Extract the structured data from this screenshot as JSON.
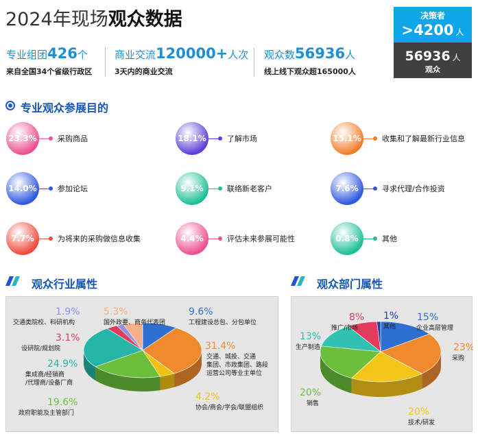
{
  "header": {
    "title_regular": "2024年现场",
    "title_bold": "观众数据"
  },
  "decision_box": {
    "label": "决策者",
    "value": ">4200",
    "unit": "人"
  },
  "audience_box": {
    "value": "56936",
    "unit": "人",
    "label": "观众"
  },
  "stats": [
    {
      "prefix": "专业组团",
      "number": "426",
      "suffix": "个",
      "desc": "来自全国34个省级行政区"
    },
    {
      "prefix": "商业交流",
      "number": "120000+",
      "suffix": "人次",
      "desc": "3天内的商业交流"
    },
    {
      "prefix": "观众数",
      "number": "56936",
      "suffix": "人",
      "desc": "线上线下观众超165000人"
    }
  ],
  "purpose": {
    "title": "专业观众参展目的",
    "items": [
      {
        "pct": "23.3%",
        "label": "采购商品",
        "color": "#ec4f8f"
      },
      {
        "pct": "18.1%",
        "label": "了解市场",
        "color": "#5b3fd6"
      },
      {
        "pct": "15.1%",
        "label": "收集和了解最新行业信息",
        "color": "#f27c2a"
      },
      {
        "pct": "14.0%",
        "label": "参加论坛",
        "color": "#2f57e0"
      },
      {
        "pct": "9.1%",
        "label": "联络新老客户",
        "color": "#1dbf95"
      },
      {
        "pct": "7.6%",
        "label": "寻求代理/合作投资",
        "color": "#2f57e0"
      },
      {
        "pct": "7.7%",
        "label": "为将来的采购做信息收集",
        "color": "#ef4a3a"
      },
      {
        "pct": "4.4%",
        "label": "评估未来参展可能性",
        "color": "#ec4f8f"
      },
      {
        "pct": "0.8%",
        "label": "其他",
        "color": "#1dbf95"
      }
    ]
  },
  "industry": {
    "title": "观众行业属性"
  },
  "department": {
    "title": "观众部门属性"
  },
  "chart_data": [
    {
      "type": "pie",
      "title": "观众行业属性",
      "slices": [
        {
          "label": "工程建设总包、分包单位",
          "value": 9.6,
          "display": "9.6%",
          "color": "#2f6fd1"
        },
        {
          "label": "交通、城投、交通集团、市政集团、路段运营公司等业主单位",
          "value": 31.4,
          "display": "31.4%",
          "color": "#f08a2e"
        },
        {
          "label": "协会/商会/学会/联盟组织",
          "value": 4.2,
          "display": "4.2%",
          "color": "#f2c211"
        },
        {
          "label": "政府职能及主管部门",
          "value": 19.6,
          "display": "19.6%",
          "color": "#6bbf3b"
        },
        {
          "label": "集成商/经销商/代理商/设备厂商",
          "value": 24.9,
          "display": "24.9%",
          "color": "#26b5a6"
        },
        {
          "label": "设研院/规划院",
          "value": 3.1,
          "display": "3.1%",
          "color": "#e23b5c"
        },
        {
          "label": "交通类院校、科研机构",
          "value": 1.9,
          "display": "1.9%",
          "color": "#8f8fe8"
        },
        {
          "label": "国外政要、商务代表团",
          "value": 5.3,
          "display": "5.3%",
          "color": "#f4b08a"
        }
      ]
    },
    {
      "type": "pie",
      "title": "观众部门属性",
      "slices": [
        {
          "label": "企业高层管理",
          "value": 15,
          "display": "15%",
          "color": "#2f6fd1"
        },
        {
          "label": "采购",
          "value": 23,
          "display": "23%",
          "color": "#f08a2e"
        },
        {
          "label": "技术/研发",
          "value": 20,
          "display": "20%",
          "color": "#f5c518"
        },
        {
          "label": "销售",
          "value": 20,
          "display": "20%",
          "color": "#6bbf3b"
        },
        {
          "label": "生产制造",
          "value": 13,
          "display": "13%",
          "color": "#2fc2b0"
        },
        {
          "label": "推广/市场",
          "value": 8,
          "display": "8%",
          "color": "#e23b5c"
        },
        {
          "label": "其他",
          "value": 1,
          "display": "1%",
          "color": "#1f3fae"
        }
      ]
    }
  ]
}
